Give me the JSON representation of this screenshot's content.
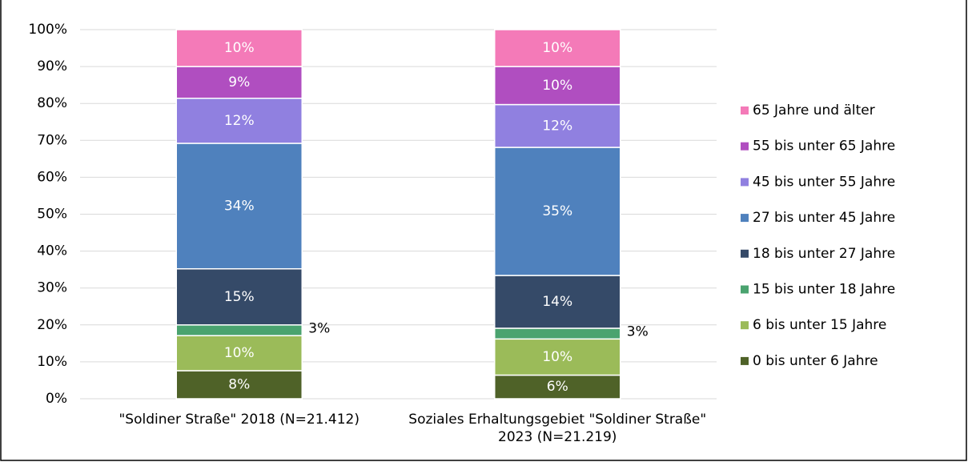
{
  "chart_data": {
    "type": "stacked_bar",
    "categories": [
      "\"Soldiner Straße\" 2018 (N=21.412)",
      "Soziales Erhaltungsgebiet \"Soldiner Straße\" 2023 (N=21.219)"
    ],
    "series": [
      {
        "name": "0 bis unter 6 Jahre",
        "color": "#4f6228",
        "values": [
          7.6,
          6.4
        ],
        "value_labels": [
          "8%",
          "6%"
        ]
      },
      {
        "name": "6 bis unter 15 Jahre",
        "color": "#9bbb59",
        "values": [
          9.5,
          9.8
        ],
        "value_labels": [
          "10%",
          "10%"
        ]
      },
      {
        "name": "15 bis unter 18 Jahre",
        "color": "#4aa36f",
        "values": [
          2.9,
          2.9
        ],
        "value_labels": [
          "3%",
          "3%"
        ]
      },
      {
        "name": "18 bis unter 27 Jahre",
        "color": "#354a68",
        "values": [
          15.2,
          14.3
        ],
        "value_labels": [
          "15%",
          "14%"
        ]
      },
      {
        "name": "27 bis unter 45 Jahre",
        "color": "#4f81bd",
        "values": [
          34.0,
          34.7
        ],
        "value_labels": [
          "34%",
          "35%"
        ]
      },
      {
        "name": "45 bis unter 55 Jahre",
        "color": "#9080e0",
        "values": [
          12.2,
          11.6
        ],
        "value_labels": [
          "12%",
          "12%"
        ]
      },
      {
        "name": "55 bis unter 65 Jahre",
        "color": "#b04ec0",
        "values": [
          8.6,
          10.3
        ],
        "value_labels": [
          "9%",
          "10%"
        ]
      },
      {
        "name": "65 Jahre und älter",
        "color": "#f47ab8",
        "values": [
          10.0,
          10.0
        ],
        "value_labels": [
          "10%",
          "10%"
        ]
      }
    ],
    "ylim": [
      0,
      100
    ],
    "yticks": [
      {
        "value": 0,
        "label": "0%"
      },
      {
        "value": 10,
        "label": "10%"
      },
      {
        "value": 20,
        "label": "20%"
      },
      {
        "value": 30,
        "label": "30%"
      },
      {
        "value": 40,
        "label": "40%"
      },
      {
        "value": 50,
        "label": "50%"
      },
      {
        "value": 60,
        "label": "60%"
      },
      {
        "value": 70,
        "label": "70%"
      },
      {
        "value": 80,
        "label": "80%"
      },
      {
        "value": 90,
        "label": "90%"
      },
      {
        "value": 100,
        "label": "100%"
      }
    ],
    "grid": true,
    "legend": "right"
  }
}
